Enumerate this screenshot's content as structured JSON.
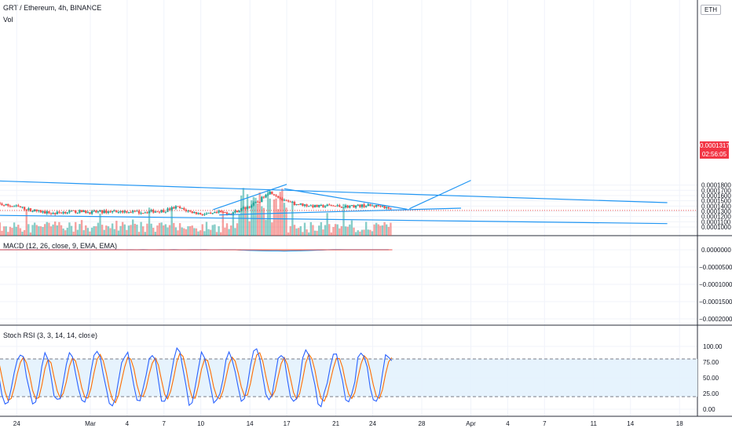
{
  "header": {
    "symbol_title": "GRT / Ethereum, 4h, BINANCE",
    "volume_label": "Vol",
    "currency_badge": "ETH"
  },
  "last_price": {
    "price": "0.0001317",
    "countdown": "02:56:05",
    "value": 0.0001317,
    "color": "#f23645"
  },
  "colors": {
    "up": "#26a69a",
    "down": "#ef5350",
    "trendline": "#2196f3",
    "macd": "#2196f3",
    "signal": "#ff6d00",
    "stoch_k": "#2962ff",
    "stoch_d": "#ff6d00",
    "band_fill": "#e3f2fd"
  },
  "x_axis": {
    "ticks": [
      {
        "label": "24",
        "day": -5
      },
      {
        "label": "Mar",
        "day": 1
      },
      {
        "label": "4",
        "day": 4
      },
      {
        "label": "7",
        "day": 7
      },
      {
        "label": "10",
        "day": 10
      },
      {
        "label": "14",
        "day": 14
      },
      {
        "label": "17",
        "day": 17
      },
      {
        "label": "21",
        "day": 21
      },
      {
        "label": "24",
        "day": 24
      },
      {
        "label": "28",
        "day": 28
      },
      {
        "label": "Apr",
        "day": 32
      },
      {
        "label": "4",
        "day": 35
      },
      {
        "label": "7",
        "day": 38
      },
      {
        "label": "11",
        "day": 42
      },
      {
        "label": "14",
        "day": 45
      },
      {
        "label": "18",
        "day": 49
      }
    ]
  },
  "chart_data": [
    {
      "type": "candlestick",
      "title": "GRT / Ethereum, 4h, BINANCE",
      "ylim": [
        9.5e-05,
        0.000187
      ],
      "y_ticks": [
        "0.0001000",
        "0.0001100",
        "0.0001200",
        "0.0001300",
        "0.0001400",
        "0.0001500",
        "0.0001600",
        "0.0001700",
        "0.0001800"
      ],
      "x_unit": "day",
      "close_path": [
        [
          -7,
          0.000146
        ],
        [
          -6,
          0.000142
        ],
        [
          -5,
          0.000139
        ],
        [
          -4,
          0.000133
        ],
        [
          -3,
          0.000129
        ],
        [
          -2,
          0.000126
        ],
        [
          -1,
          0.000129
        ],
        [
          0,
          0.0001295
        ],
        [
          1,
          0.000128
        ],
        [
          2,
          0.000129
        ],
        [
          3,
          0.00013
        ],
        [
          4,
          0.00013
        ],
        [
          5,
          0.000128
        ],
        [
          6,
          0.00013
        ],
        [
          7,
          0.000131
        ],
        [
          8,
          0.000138
        ],
        [
          9,
          0.00013
        ],
        [
          10,
          0.000125
        ],
        [
          10.8,
          0.000124
        ],
        [
          11.5,
          0.000128
        ],
        [
          12.5,
          0.000126
        ],
        [
          13.3,
          0.000134
        ],
        [
          14,
          0.00014
        ],
        [
          14.8,
          0.00015
        ],
        [
          15.3,
          0.000164
        ],
        [
          15.7,
          0.000167
        ],
        [
          16.3,
          0.000158
        ],
        [
          16.8,
          0.000149
        ],
        [
          17.5,
          0.000145
        ],
        [
          18.5,
          0.000142
        ],
        [
          19.5,
          0.000139
        ],
        [
          20.5,
          0.000141
        ],
        [
          21.5,
          0.000139
        ],
        [
          22.5,
          0.00014
        ],
        [
          23.5,
          0.000141
        ],
        [
          24.3,
          0.00014
        ],
        [
          24.7,
          0.000142
        ],
        [
          25.2,
          0.000135
        ],
        [
          25.6,
          0.0001317
        ]
      ],
      "trendlines": [
        {
          "p1": [
            -7.3,
            0.0001885
          ],
          "p2": [
            48,
            0.0001465
          ]
        },
        {
          "p1": [
            -7.3,
            0.0001225
          ],
          "p2": [
            48,
            0.0001065
          ]
        },
        {
          "p1": [
            11,
            0.000133
          ],
          "p2": [
            17,
            0.0001815
          ]
        },
        {
          "p1": [
            16.8,
            0.000173
          ],
          "p2": [
            26.8,
            0.000134
          ]
        },
        {
          "p1": [
            11.5,
            0.000123
          ],
          "p2": [
            31.2,
            0.000136
          ]
        },
        {
          "p1": [
            27,
            0.000135
          ],
          "p2": [
            32,
            0.000189
          ]
        }
      ]
    },
    {
      "type": "bar",
      "title": "Vol",
      "x_unit": "day"
    },
    {
      "type": "line",
      "title": "MACD (12, 26, close, 9, EMA, EMA)",
      "ylim": [
        -0.0002,
        5e-06
      ],
      "y_ticks": [
        "0.0000000",
        "−0.0000500",
        "−0.0001000",
        "−0.0001500",
        "−0.0002000"
      ],
      "series": [
        {
          "values_note_flat": 1e-07
        }
      ]
    },
    {
      "type": "line",
      "title": "Stoch RSI (3, 3, 14, 14, close)",
      "ylim": [
        0,
        100
      ],
      "y_ticks": [
        "0.00",
        "25.00",
        "50.00",
        "75.00",
        "100.00"
      ],
      "bands": [
        20,
        80
      ]
    }
  ]
}
